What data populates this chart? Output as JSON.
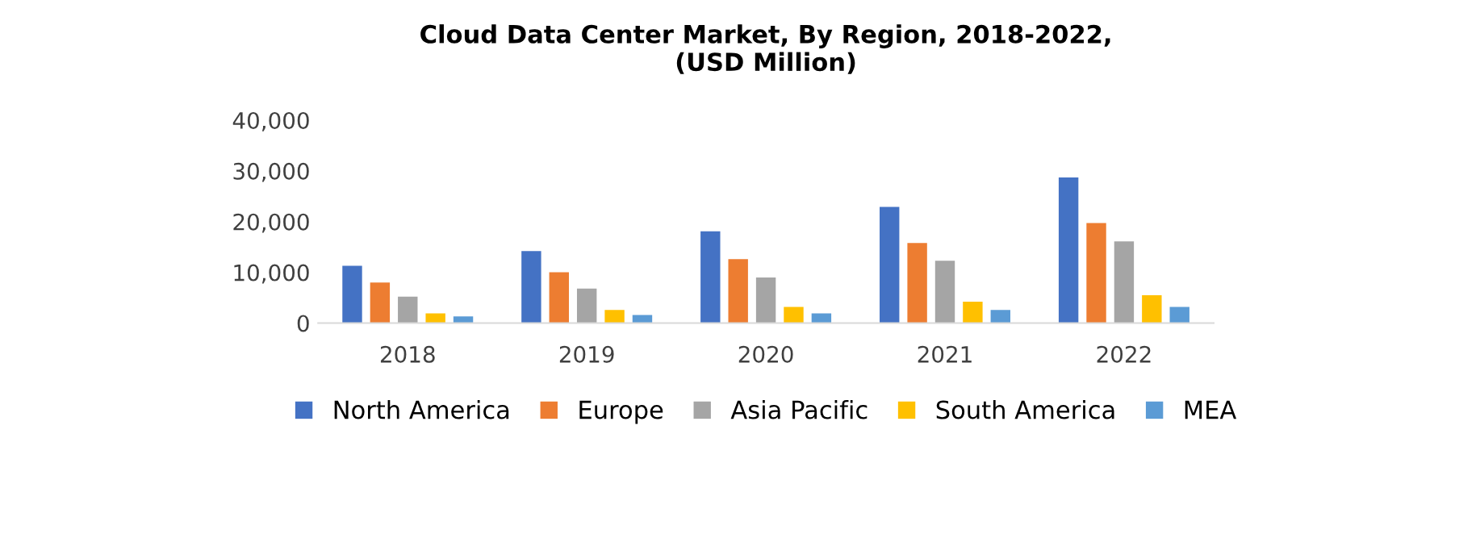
{
  "chart_data": {
    "type": "bar",
    "title": "Cloud Data Center Market, By Region, 2018-2022,\n(USD Million)",
    "categories": [
      "2018",
      "2019",
      "2020",
      "2021",
      "2022"
    ],
    "series": [
      {
        "name": "North America",
        "color": "#4472c4",
        "values": [
          11300,
          14200,
          18100,
          22900,
          28700
        ]
      },
      {
        "name": "Europe",
        "color": "#ed7d31",
        "values": [
          8000,
          10000,
          12600,
          15800,
          19700
        ]
      },
      {
        "name": "Asia Pacific",
        "color": "#a5a5a5",
        "values": [
          5200,
          6800,
          9000,
          12300,
          16100
        ]
      },
      {
        "name": "South America",
        "color": "#ffc000",
        "values": [
          1900,
          2600,
          3200,
          4200,
          5500
        ]
      },
      {
        "name": "MEA",
        "color": "#5b9bd5",
        "values": [
          1300,
          1600,
          1900,
          2600,
          3200
        ]
      }
    ],
    "ylim": [
      0,
      40000
    ],
    "yticks": [
      {
        "value": 0,
        "label": "0"
      },
      {
        "value": 10000,
        "label": "10,000"
      },
      {
        "value": 20000,
        "label": "20,000"
      },
      {
        "value": 30000,
        "label": "30,000"
      },
      {
        "value": 40000,
        "label": "40,000"
      }
    ],
    "grid": false,
    "legend": "bottom"
  }
}
